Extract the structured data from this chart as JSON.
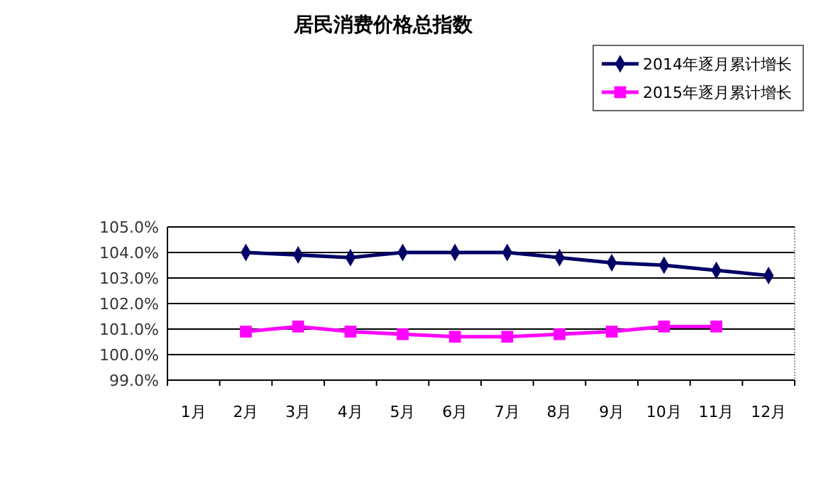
{
  "chart_data": {
    "type": "line",
    "title": "居民消费价格总指数",
    "categories": [
      "1月",
      "2月",
      "3月",
      "4月",
      "5月",
      "6月",
      "7月",
      "8月",
      "9月",
      "10月",
      "11月",
      "12月"
    ],
    "series": [
      {
        "name": "2014年逐月累计增长",
        "color": "#000066",
        "marker": "diamond",
        "values": [
          null,
          104.0,
          103.9,
          103.8,
          104.0,
          104.0,
          104.0,
          103.8,
          103.6,
          103.5,
          103.3,
          103.1
        ]
      },
      {
        "name": "2015年逐月累计增长",
        "color": "#ff00ff",
        "marker": "square",
        "values": [
          null,
          100.9,
          101.1,
          100.9,
          100.8,
          100.7,
          100.7,
          100.8,
          100.9,
          101.1,
          101.1,
          null
        ]
      }
    ],
    "ylim": [
      99,
      105
    ],
    "yticks": [
      {
        "value": 99,
        "label": "99.0%"
      },
      {
        "value": 100,
        "label": "100.0%"
      },
      {
        "value": 101,
        "label": "101.0%"
      },
      {
        "value": 102,
        "label": "102.0%"
      },
      {
        "value": 103,
        "label": "103.0%"
      },
      {
        "value": 104,
        "label": "104.0%"
      },
      {
        "value": 105,
        "label": "105.0%"
      }
    ],
    "grid": "y",
    "legend": "top right"
  }
}
